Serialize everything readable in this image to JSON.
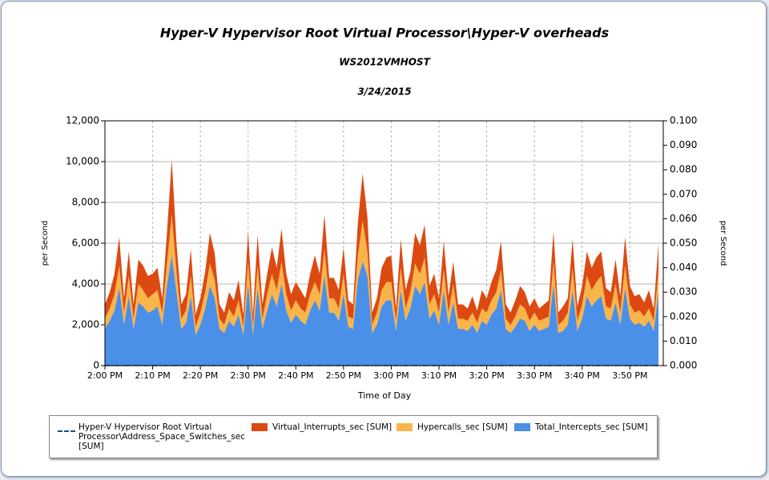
{
  "chart_data": {
    "type": "area",
    "stacked": true,
    "title": "Hyper-V Hypervisor Root Virtual Processor\\Hyper-V overheads",
    "subtitle": "WS2012VMHOST",
    "date": "3/24/2015",
    "xlabel": "Time of Day",
    "ylabel": "per Second",
    "y2label": "per Second",
    "x": [
      "2:00 PM",
      "2:01 PM",
      "2:02 PM",
      "2:03 PM",
      "2:04 PM",
      "2:05 PM",
      "2:06 PM",
      "2:07 PM",
      "2:08 PM",
      "2:09 PM",
      "2:10 PM",
      "2:11 PM",
      "2:12 PM",
      "2:13 PM",
      "2:14 PM",
      "2:15 PM",
      "2:16 PM",
      "2:17 PM",
      "2:18 PM",
      "2:19 PM",
      "2:20 PM",
      "2:21 PM",
      "2:22 PM",
      "2:23 PM",
      "2:24 PM",
      "2:25 PM",
      "2:26 PM",
      "2:27 PM",
      "2:28 PM",
      "2:29 PM",
      "2:30 PM",
      "2:31 PM",
      "2:32 PM",
      "2:33 PM",
      "2:34 PM",
      "2:35 PM",
      "2:36 PM",
      "2:37 PM",
      "2:38 PM",
      "2:39 PM",
      "2:40 PM",
      "2:41 PM",
      "2:42 PM",
      "2:43 PM",
      "2:44 PM",
      "2:45 PM",
      "2:46 PM",
      "2:47 PM",
      "2:48 PM",
      "2:49 PM",
      "2:50 PM",
      "2:51 PM",
      "2:52 PM",
      "2:53 PM",
      "2:54 PM",
      "2:55 PM",
      "2:56 PM",
      "2:57 PM",
      "2:58 PM",
      "2:59 PM",
      "3:00 PM",
      "3:01 PM",
      "3:02 PM",
      "3:03 PM",
      "3:04 PM",
      "3:05 PM",
      "3:06 PM",
      "3:07 PM",
      "3:08 PM",
      "3:09 PM",
      "3:10 PM",
      "3:11 PM",
      "3:12 PM",
      "3:13 PM",
      "3:14 PM",
      "3:15 PM",
      "3:16 PM",
      "3:17 PM",
      "3:18 PM",
      "3:19 PM",
      "3:20 PM",
      "3:21 PM",
      "3:22 PM",
      "3:23 PM",
      "3:24 PM",
      "3:25 PM",
      "3:26 PM",
      "3:27 PM",
      "3:28 PM",
      "3:29 PM",
      "3:30 PM",
      "3:31 PM",
      "3:32 PM",
      "3:33 PM",
      "3:34 PM",
      "3:35 PM",
      "3:36 PM",
      "3:37 PM",
      "3:38 PM",
      "3:39 PM",
      "3:40 PM",
      "3:41 PM",
      "3:42 PM",
      "3:43 PM",
      "3:44 PM",
      "3:45 PM",
      "3:46 PM",
      "3:47 PM",
      "3:48 PM",
      "3:49 PM",
      "3:50 PM",
      "3:51 PM",
      "3:52 PM",
      "3:53 PM",
      "3:54 PM",
      "3:55 PM",
      "3:56 PM"
    ],
    "xlim": [
      "2:00 PM",
      "3:57 PM"
    ],
    "xticks": [
      "2:00 PM",
      "2:10 PM",
      "2:20 PM",
      "2:30 PM",
      "2:40 PM",
      "2:50 PM",
      "3:00 PM",
      "3:10 PM",
      "3:20 PM",
      "3:30 PM",
      "3:40 PM",
      "3:50 PM"
    ],
    "ylim": [
      0,
      12000
    ],
    "yticks": [
      0,
      {
        "value": 2000,
        "label": "2,000"
      },
      {
        "value": 4000,
        "label": "4,000"
      },
      {
        "value": 6000,
        "label": "6,000"
      },
      {
        "value": 8000,
        "label": "8,000"
      },
      {
        "value": 10000,
        "label": "10,000"
      },
      {
        "value": 12000,
        "label": "12,000"
      }
    ],
    "y2lim": [
      0,
      0.1
    ],
    "y2ticks": [
      {
        "value": 0,
        "label": "0.000"
      },
      {
        "value": 0.01,
        "label": "0.010"
      },
      {
        "value": 0.02,
        "label": "0.020"
      },
      {
        "value": 0.03,
        "label": "0.030"
      },
      {
        "value": 0.04,
        "label": "0.040"
      },
      {
        "value": 0.05,
        "label": "0.050"
      },
      {
        "value": 0.06,
        "label": "0.060"
      },
      {
        "value": 0.07,
        "label": "0.070"
      },
      {
        "value": 0.08,
        "label": "0.080"
      },
      {
        "value": 0.09,
        "label": "0.090"
      },
      {
        "value": 0.1,
        "label": "0.100"
      }
    ],
    "grid": true,
    "series": [
      {
        "name": "Hyper-V Hypervisor Root Virtual Processor\\Address_Space_Switches_sec [SUM]",
        "color": "#1f4e79",
        "axis": "y2",
        "values": [
          0,
          0,
          0,
          0,
          0,
          0,
          0,
          0,
          0,
          0,
          0,
          0,
          0,
          0,
          0,
          0,
          0,
          0,
          0,
          0,
          0,
          0,
          0,
          0,
          0,
          0,
          0,
          0,
          0,
          0,
          0,
          0,
          0,
          0,
          0,
          0,
          0,
          0,
          0,
          0,
          0,
          0,
          0,
          0,
          0,
          0,
          0,
          0,
          0,
          0,
          0,
          0,
          0,
          0,
          0,
          0,
          0,
          0,
          0,
          0,
          0,
          0,
          0,
          0,
          0,
          0,
          0,
          0,
          0,
          0,
          0,
          0,
          0,
          0,
          0,
          0,
          0,
          0,
          0,
          0,
          0,
          0,
          0,
          0,
          0,
          0,
          0,
          0,
          0,
          0,
          0,
          0,
          0,
          0,
          0,
          0,
          0,
          0,
          0,
          0,
          0,
          0,
          0,
          0,
          0,
          0,
          0,
          0,
          0,
          0,
          0,
          0,
          0,
          0,
          0,
          0,
          0
        ]
      },
      {
        "name": "Virtual_Interrupts_sec [SUM]",
        "color": "#dc4a12",
        "values": [
          700,
          800,
          1000,
          1400,
          700,
          1200,
          700,
          1200,
          1200,
          1100,
          1000,
          1100,
          700,
          1500,
          2700,
          1400,
          700,
          800,
          1300,
          600,
          700,
          1000,
          1500,
          1300,
          700,
          600,
          800,
          800,
          1000,
          600,
          1500,
          600,
          1500,
          700,
          1000,
          1300,
          1100,
          1600,
          1000,
          800,
          900,
          900,
          700,
          1000,
          1300,
          1000,
          1700,
          1000,
          1000,
          900,
          1300,
          800,
          700,
          1600,
          2300,
          1700,
          600,
          700,
          1100,
          1200,
          1300,
          600,
          1400,
          900,
          1000,
          1500,
          1400,
          1600,
          900,
          1000,
          700,
          1400,
          800,
          1100,
          700,
          700,
          600,
          800,
          600,
          900,
          700,
          900,
          1100,
          1400,
          700,
          600,
          800,
          900,
          800,
          700,
          700,
          600,
          700,
          800,
          1500,
          600,
          700,
          700,
          1400,
          700,
          900,
          1200,
          1100,
          1200,
          1200,
          900,
          800,
          1200,
          800,
          1400,
          900,
          800,
          800,
          700,
          900,
          600,
          1400
        ]
      },
      {
        "name": "Hypercalls_sec [SUM]",
        "color": "#f9b44a",
        "values": [
          500,
          600,
          800,
          1100,
          600,
          1000,
          500,
          900,
          800,
          700,
          800,
          800,
          600,
          1100,
          2000,
          1000,
          500,
          600,
          1000,
          400,
          600,
          800,
          1100,
          900,
          500,
          400,
          600,
          500,
          700,
          400,
          1100,
          400,
          1100,
          500,
          800,
          1000,
          800,
          1100,
          800,
          600,
          700,
          600,
          600,
          800,
          900,
          800,
          1300,
          700,
          700,
          600,
          1000,
          500,
          500,
          1200,
          2000,
          1200,
          400,
          600,
          800,
          900,
          900,
          500,
          1100,
          600,
          800,
          1100,
          1000,
          1200,
          700,
          800,
          600,
          1000,
          600,
          900,
          500,
          500,
          500,
          600,
          500,
          600,
          600,
          700,
          800,
          1000,
          500,
          400,
          500,
          700,
          600,
          500,
          600,
          500,
          500,
          500,
          1100,
          400,
          500,
          600,
          1100,
          500,
          700,
          1000,
          800,
          900,
          1000,
          600,
          600,
          900,
          600,
          1100,
          700,
          600,
          600,
          500,
          600,
          500,
          1000
        ]
      },
      {
        "name": "Total_Intercepts_sec [SUM]",
        "color": "#4a8fe8",
        "values": [
          1800,
          2200,
          2700,
          3800,
          2000,
          3400,
          1800,
          3100,
          2900,
          2600,
          2700,
          2900,
          2000,
          3900,
          5400,
          3600,
          1800,
          2100,
          3400,
          1500,
          2000,
          2800,
          3900,
          3300,
          1800,
          1600,
          2200,
          1900,
          2500,
          1500,
          4000,
          1500,
          3800,
          1800,
          2700,
          3500,
          2900,
          4000,
          2700,
          2100,
          2500,
          2200,
          2000,
          2700,
          3200,
          2700,
          4400,
          2600,
          2600,
          2200,
          3500,
          1900,
          1800,
          4200,
          5100,
          4400,
          1600,
          2000,
          2900,
          3200,
          3200,
          1700,
          3700,
          2200,
          2800,
          3900,
          3500,
          4100,
          2300,
          2700,
          2000,
          3700,
          2000,
          3100,
          1800,
          1800,
          1700,
          2000,
          1600,
          2200,
          2000,
          2500,
          2800,
          3700,
          1800,
          1600,
          1900,
          2300,
          2200,
          1700,
          2000,
          1700,
          1800,
          1900,
          4000,
          1600,
          1700,
          2000,
          3700,
          1700,
          2300,
          3400,
          2900,
          3200,
          3400,
          2300,
          2200,
          3100,
          2000,
          3800,
          2300,
          2000,
          2100,
          1900,
          2200,
          1700,
          3600
        ]
      }
    ]
  }
}
